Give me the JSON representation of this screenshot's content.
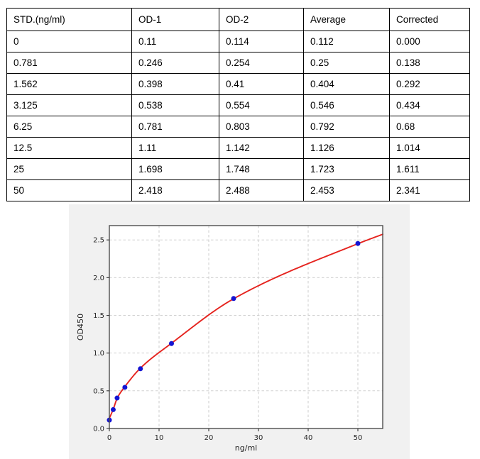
{
  "table": {
    "headers": [
      "STD.(ng/ml)",
      "OD-1",
      "OD-2",
      "Average",
      "Corrected"
    ],
    "rows": [
      [
        "0",
        "0.11",
        "0.114",
        "0.112",
        "0.000"
      ],
      [
        "0.781",
        "0.246",
        "0.254",
        "0.25",
        "0.138"
      ],
      [
        "1.562",
        "0.398",
        "0.41",
        "0.404",
        "0.292"
      ],
      [
        "3.125",
        "0.538",
        "0.554",
        "0.546",
        "0.434"
      ],
      [
        "6.25",
        "0.781",
        "0.803",
        "0.792",
        "0.68"
      ],
      [
        "12.5",
        "1.11",
        "1.142",
        "1.126",
        "1.014"
      ],
      [
        "25",
        "1.698",
        "1.748",
        "1.723",
        "1.611"
      ],
      [
        "50",
        "2.418",
        "2.488",
        "2.453",
        "2.341"
      ]
    ]
  },
  "chart_data": {
    "type": "scatter",
    "title": "",
    "xlabel": "ng/ml",
    "ylabel": "OD450",
    "xlim": [
      0,
      55
    ],
    "ylim": [
      0,
      2.69
    ],
    "xticks": [
      0,
      10,
      20,
      30,
      40,
      50
    ],
    "yticks": [
      0,
      0.5,
      1.0,
      1.5,
      2.0,
      2.5
    ],
    "grid": true,
    "legend": false,
    "series": [
      {
        "name": "standard-points",
        "type": "scatter",
        "color": "#1414d2",
        "x": [
          0,
          0.781,
          1.562,
          3.125,
          6.25,
          12.5,
          25,
          50
        ],
        "y": [
          0.112,
          0.25,
          0.404,
          0.546,
          0.792,
          1.126,
          1.723,
          2.453
        ]
      },
      {
        "name": "fit-curve",
        "type": "line",
        "color": "#e5231e",
        "points": [
          [
            0,
            0.135
          ],
          [
            0.781,
            0.255
          ],
          [
            1.562,
            0.4
          ],
          [
            3.125,
            0.555
          ],
          [
            6.25,
            0.8
          ],
          [
            12.5,
            1.13
          ],
          [
            25,
            1.72
          ],
          [
            50,
            2.45
          ],
          [
            55,
            2.575
          ]
        ]
      }
    ],
    "colors": {
      "panel_bg": "#f1f1f1",
      "plot_bg": "#ffffff",
      "grid": "#c9c9c9",
      "spine": "#4d4d4d",
      "tick_text": "#262626"
    }
  }
}
